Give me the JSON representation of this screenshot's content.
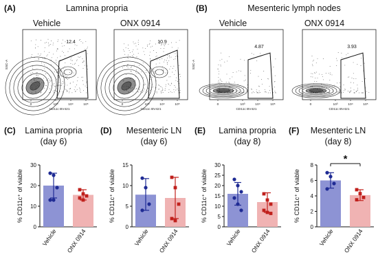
{
  "flow": {
    "sections": [
      {
        "letter": "(A)",
        "title": "Lamnina propria"
      },
      {
        "letter": "(B)",
        "title": "Mesenteric lymph nodes"
      }
    ],
    "plots": [
      {
        "label": "Vehicle",
        "gate_value": "12.4",
        "x_axis": "CD11c BV421",
        "y_axis": "SSC-A"
      },
      {
        "label": "ONX 0914",
        "gate_value": "10.9",
        "x_axis": "CD11c BV421",
        "y_axis": ""
      },
      {
        "label": "Vehicle",
        "gate_value": "4.87",
        "x_axis": "CD11c BV421",
        "y_axis": "SSC-A"
      },
      {
        "label": "ONX 0914",
        "gate_value": "3.93",
        "x_axis": "CD11c BV421",
        "y_axis": ""
      }
    ],
    "x_ticks": [
      "0",
      "10³",
      "10⁴",
      "10⁵"
    ]
  },
  "chart_data": [
    {
      "type": "bar",
      "letter": "(C)",
      "title": "Lamina propria",
      "subtitle": "(day 6)",
      "categories": [
        "Vehicle",
        "ONX 0914"
      ],
      "values": [
        20,
        15.5
      ],
      "error": [
        [
          14,
          26
        ],
        [
          13,
          18
        ]
      ],
      "points": [
        [
          26,
          25,
          19,
          13,
          13
        ],
        [
          18,
          16,
          15,
          14,
          13
        ]
      ],
      "ylabel": "% CD11c⁺ of viable",
      "ylim": [
        0,
        30
      ],
      "yticks": [
        0,
        10,
        20,
        30
      ],
      "colors": [
        "#8d93d4",
        "#f0b3b3"
      ],
      "point_colors": [
        "#1f2b94",
        "#c0201c"
      ],
      "significance": ""
    },
    {
      "type": "bar",
      "letter": "(D)",
      "title": "Mesenteric LN",
      "subtitle": "(day 6)",
      "categories": [
        "Vehicle",
        "ONX 0914"
      ],
      "values": [
        7.8,
        7.0
      ],
      "error": [
        [
          4,
          11.7
        ],
        [
          2,
          12
        ]
      ],
      "points": [
        [
          11.8,
          9.5,
          5.5,
          4.0
        ],
        [
          12,
          9.5,
          5.5,
          2.0,
          1.5
        ]
      ],
      "ylabel": "% CD11c⁺ of viable",
      "ylim": [
        0,
        15
      ],
      "yticks": [
        0,
        5,
        10,
        15
      ],
      "colors": [
        "#8d93d4",
        "#f0b3b3"
      ],
      "point_colors": [
        "#1f2b94",
        "#c0201c"
      ],
      "significance": ""
    },
    {
      "type": "bar",
      "letter": "(E)",
      "title": "Lamina propria",
      "subtitle": "(day 8)",
      "categories": [
        "Vehicle",
        "ONX 0914"
      ],
      "values": [
        16,
        12
      ],
      "error": [
        [
          10.5,
          21.5
        ],
        [
          7,
          16.5
        ]
      ],
      "points": [
        [
          23,
          20,
          17,
          14,
          11,
          8
        ],
        [
          16,
          13,
          11,
          8,
          7,
          6.5
        ]
      ],
      "ylabel": "% CD11c⁺ of viable",
      "ylim": [
        0,
        30
      ],
      "yticks": [
        0,
        5,
        10,
        15,
        20,
        25,
        30
      ],
      "colors": [
        "#8d93d4",
        "#f0b3b3"
      ],
      "point_colors": [
        "#1f2b94",
        "#c0201c"
      ],
      "significance": ""
    },
    {
      "type": "bar",
      "letter": "(F)",
      "title": "Mesenteric LN",
      "subtitle": "(day 8)",
      "categories": [
        "Vehicle",
        "ONX 0914"
      ],
      "values": [
        6.0,
        4.1
      ],
      "error": [
        [
          5.0,
          7.0
        ],
        [
          3.4,
          4.8
        ]
      ],
      "points": [
        [
          7.0,
          6.5,
          5.6,
          4.9
        ],
        [
          4.8,
          4.3,
          3.8,
          3.5
        ]
      ],
      "ylabel": "% CD11c⁺ of viable",
      "ylim": [
        0,
        8
      ],
      "yticks": [
        0,
        2,
        4,
        6,
        8
      ],
      "colors": [
        "#8d93d4",
        "#f0b3b3"
      ],
      "point_colors": [
        "#1f2b94",
        "#c0201c"
      ],
      "significance": "*"
    }
  ]
}
